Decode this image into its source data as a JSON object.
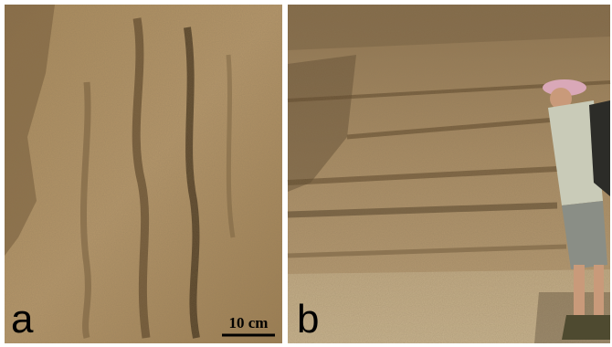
{
  "panels": [
    {
      "label": "a",
      "scale_bar": "10 cm"
    },
    {
      "label": "b"
    }
  ]
}
